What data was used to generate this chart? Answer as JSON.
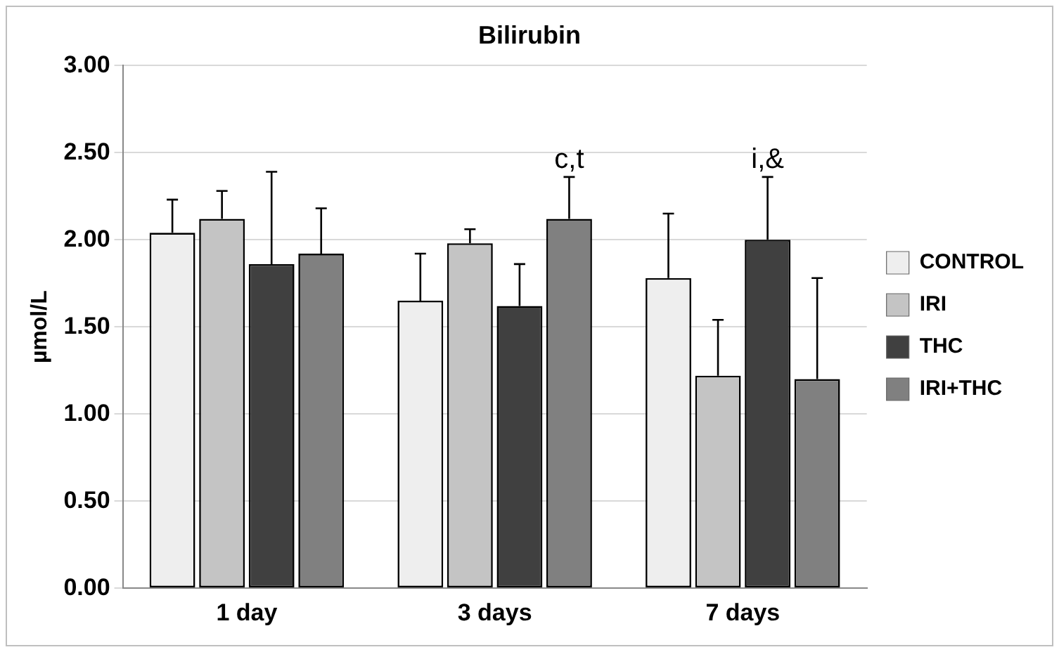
{
  "chart_data": {
    "type": "bar",
    "title": "Bilirubin",
    "ylabel": "µmol/L",
    "categories": [
      "1 day",
      "3 days",
      "7 days"
    ],
    "series": [
      {
        "name": "CONTROL",
        "color": "#eeeeee",
        "values": [
          2.04,
          1.65,
          1.78
        ],
        "errors": [
          0.19,
          0.27,
          0.37
        ]
      },
      {
        "name": "IRI",
        "color": "#c4c4c4",
        "values": [
          2.12,
          1.98,
          1.22
        ],
        "errors": [
          0.16,
          0.08,
          0.32
        ]
      },
      {
        "name": "THC",
        "color": "#404040",
        "values": [
          1.86,
          1.62,
          2.0
        ],
        "errors": [
          0.53,
          0.24,
          0.36
        ],
        "value_labels": [
          null,
          null,
          "i,&"
        ]
      },
      {
        "name": "IRI+THC",
        "color": "#808080",
        "values": [
          1.92,
          2.12,
          1.2
        ],
        "errors": [
          0.26,
          0.24,
          0.58
        ],
        "value_labels": [
          null,
          "c,t",
          null
        ]
      }
    ],
    "ylim": [
      0,
      3
    ],
    "yticks": [
      {
        "value": 0,
        "label": "0.00"
      },
      {
        "value": 0.5,
        "label": "0.50"
      },
      {
        "value": 1,
        "label": "1.00"
      },
      {
        "value": 1.5,
        "label": "1.50"
      },
      {
        "value": 2,
        "label": "2.00"
      },
      {
        "value": 2.5,
        "label": "2.50"
      },
      {
        "value": 3,
        "label": "3.00"
      }
    ],
    "grid": "y",
    "legend": "right"
  }
}
